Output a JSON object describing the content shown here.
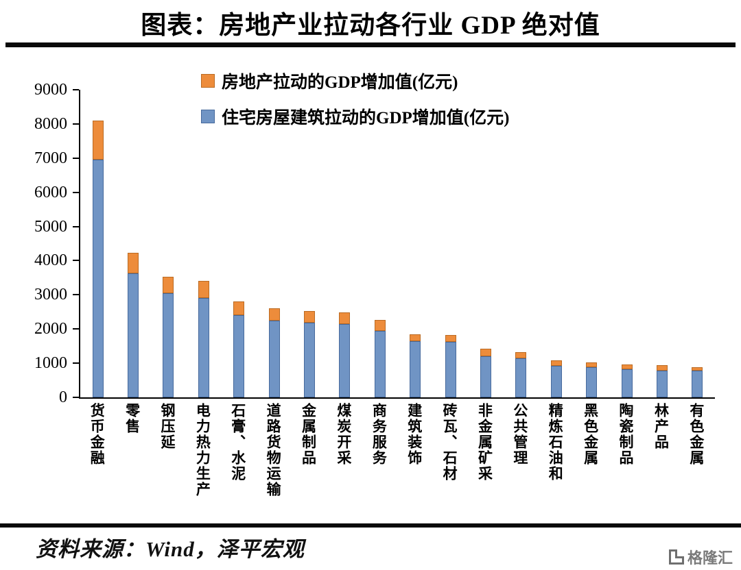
{
  "title": "图表：房地产业拉动各行业 GDP 绝对值",
  "footer": {
    "source": "资料来源：Wind，泽平宏观",
    "logo_text": "格隆汇"
  },
  "chart_data": {
    "type": "bar",
    "stacked": true,
    "title": "图表：房地产业拉动各行业 GDP 绝对值",
    "xlabel": "",
    "ylabel": "",
    "ylim": [
      0,
      9000
    ],
    "ytick_step": 1000,
    "grid": false,
    "legend_position": "top",
    "categories": [
      "货币金融",
      "零售",
      "钢压延",
      "电力热力生产",
      "石膏、水泥",
      "道路货物运输",
      "金属制品",
      "煤炭开采",
      "商务服务",
      "建筑装饰",
      "砖瓦、石材",
      "非金属矿采",
      "公共管理",
      "精炼石油和",
      "黑色金属",
      "陶瓷制品",
      "林产品",
      "有色金属"
    ],
    "series": [
      {
        "name": "房地产拉动的GDP增加值(亿元)",
        "role": "top-segment",
        "color": "#ED8C3B",
        "border": "#BA6A22",
        "values": [
          1150,
          600,
          470,
          500,
          400,
          350,
          340,
          330,
          320,
          200,
          210,
          230,
          180,
          150,
          140,
          130,
          170,
          100
        ]
      },
      {
        "name": "住宅房屋建筑拉动的GDP增加值(亿元)",
        "role": "base-segment",
        "color": "#7094C4",
        "border": "#46699C",
        "values": [
          6950,
          3620,
          3050,
          2900,
          2400,
          2250,
          2180,
          2150,
          1950,
          1650,
          1620,
          1200,
          1150,
          930,
          880,
          830,
          780,
          780
        ]
      }
    ],
    "totals": [
      8100,
      4220,
      3520,
      3400,
      2800,
      2600,
      2520,
      2480,
      2270,
      1850,
      1830,
      1430,
      1330,
      1080,
      1020,
      960,
      950,
      880
    ]
  }
}
